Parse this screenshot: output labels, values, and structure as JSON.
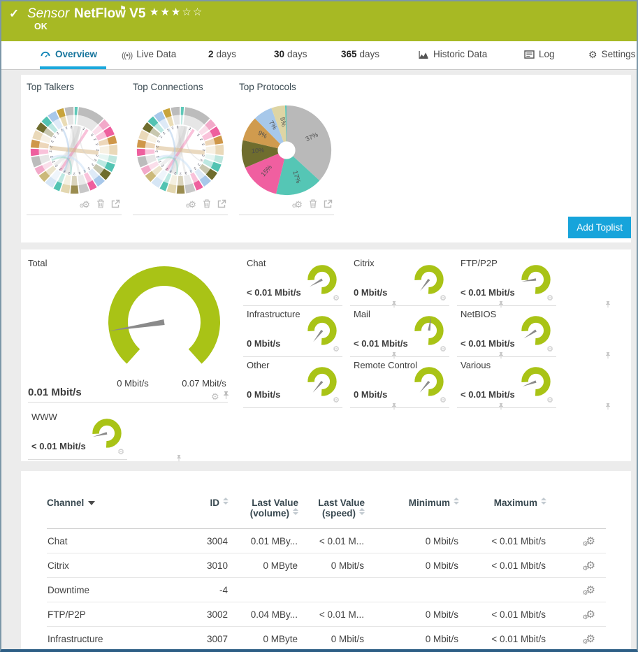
{
  "header": {
    "check_icon": "✓",
    "kind": "Sensor",
    "name": "NetFlow V5",
    "flag_icon": "⚑",
    "stars": "★★★☆☆",
    "status": "OK",
    "bg_color": "#a7b924"
  },
  "tabs": [
    {
      "label": "Overview",
      "icon": "gauge",
      "active": true
    },
    {
      "label": "Live Data",
      "icon": "broadcast"
    },
    {
      "label": "2",
      "suffix": "days"
    },
    {
      "label": "30",
      "suffix": "days"
    },
    {
      "label": "365",
      "suffix": "days"
    },
    {
      "label": "Historic Data",
      "icon": "chart"
    },
    {
      "label": "Log",
      "icon": "log"
    },
    {
      "label": "Settings",
      "icon": "gear"
    }
  ],
  "toplists": {
    "add_button": "Add Toplist",
    "accent_color": "#17a4db",
    "items": [
      {
        "title": "Top Talkers"
      },
      {
        "title": "Top Connections"
      },
      {
        "title": "Top Protocols"
      }
    ]
  },
  "chart_data": [
    {
      "type": "chord",
      "title": "Top Talkers",
      "segments": [
        {
          "color": "#5ec8b8",
          "w": 0.5
        },
        {
          "color": "#bcbcbc",
          "w": 3.4
        },
        {
          "color": "#f2a9c9",
          "w": 1.1
        },
        {
          "color": "#ee5f9e",
          "w": 1.2
        },
        {
          "color": "#cf9749",
          "w": 1.1
        },
        {
          "color": "#ead9b9",
          "w": 1.4
        },
        {
          "color": "#bfe7df",
          "w": 1.0
        },
        {
          "color": "#52c3b2",
          "w": 1.1
        },
        {
          "color": "#6f6d2e",
          "w": 1.2
        },
        {
          "color": "#a8c8ea",
          "w": 1.2
        },
        {
          "color": "#ee5f9e",
          "w": 1.0
        },
        {
          "color": "#c7c7c7",
          "w": 1.3
        },
        {
          "color": "#9a8c4f",
          "w": 1.1
        },
        {
          "color": "#e3d7b0",
          "w": 1.2
        },
        {
          "color": "#52c3b2",
          "w": 0.9
        },
        {
          "color": "#d6e6f5",
          "w": 1.2
        },
        {
          "color": "#cbb97a",
          "w": 1.1
        },
        {
          "color": "#f2a9c9",
          "w": 1.0
        },
        {
          "color": "#bcbcbc",
          "w": 1.4
        },
        {
          "color": "#ee5f9e",
          "w": 1.0
        },
        {
          "color": "#cf9749",
          "w": 1.1
        },
        {
          "color": "#ead9b9",
          "w": 1.2
        },
        {
          "color": "#6f6d2e",
          "w": 1.1
        },
        {
          "color": "#52c3b2",
          "w": 1.0
        },
        {
          "color": "#a8c8ea",
          "w": 1.2
        },
        {
          "color": "#c8a43c",
          "w": 1.0
        },
        {
          "color": "#bcbcbc",
          "w": 1.2
        }
      ],
      "ring_digits": [
        "",
        "1",
        "5",
        "2",
        "2",
        "2",
        "2",
        "2",
        "2",
        "2",
        "2",
        "2",
        "2",
        "2",
        "2",
        "2",
        "2",
        "2",
        "2",
        "2",
        "2",
        "2",
        "2",
        "2",
        "2",
        "2",
        "2"
      ],
      "chords": [
        {
          "a": 8,
          "b": 196,
          "c": "#bbbbbb",
          "w": 9,
          "o": 0.3
        },
        {
          "a": 14,
          "b": 232,
          "c": "#bbbbbb",
          "w": 5,
          "o": 0.25
        },
        {
          "a": 356,
          "b": 168,
          "c": "#bbbbbb",
          "w": 3,
          "o": 0.25
        },
        {
          "a": 2,
          "b": 210,
          "c": "#cccccc",
          "w": 12,
          "o": 0.22
        },
        {
          "a": 33,
          "b": 214,
          "c": "#ee5f9e",
          "w": 4,
          "o": 0.38
        },
        {
          "a": 96,
          "b": 276,
          "c": "#d9b98b",
          "w": 6,
          "o": 0.55
        },
        {
          "a": 152,
          "b": 252,
          "c": "#cfe3f7",
          "w": 3,
          "o": 0.6
        },
        {
          "a": 205,
          "b": 332,
          "c": "#a8c8ea",
          "w": 2.5,
          "o": 0.5
        },
        {
          "a": 22,
          "b": 118,
          "c": "#cccccc",
          "w": 1.5,
          "o": 0.4
        },
        {
          "a": 188,
          "b": 246,
          "c": "#7fd2c4",
          "w": 2.5,
          "o": 0.45
        }
      ]
    },
    {
      "type": "chord",
      "title": "Top Connections",
      "segments": [
        {
          "color": "#5ec8b8",
          "w": 0.5
        },
        {
          "color": "#bcbcbc",
          "w": 3.4
        },
        {
          "color": "#f2a9c9",
          "w": 1.1
        },
        {
          "color": "#ee5f9e",
          "w": 1.2
        },
        {
          "color": "#cf9749",
          "w": 1.1
        },
        {
          "color": "#ead9b9",
          "w": 1.4
        },
        {
          "color": "#bfe7df",
          "w": 1.0
        },
        {
          "color": "#52c3b2",
          "w": 1.1
        },
        {
          "color": "#6f6d2e",
          "w": 1.2
        },
        {
          "color": "#a8c8ea",
          "w": 1.2
        },
        {
          "color": "#ee5f9e",
          "w": 1.0
        },
        {
          "color": "#c7c7c7",
          "w": 1.3
        },
        {
          "color": "#9a8c4f",
          "w": 1.1
        },
        {
          "color": "#e3d7b0",
          "w": 1.2
        },
        {
          "color": "#52c3b2",
          "w": 0.9
        },
        {
          "color": "#d6e6f5",
          "w": 1.2
        },
        {
          "color": "#cbb97a",
          "w": 1.1
        },
        {
          "color": "#f2a9c9",
          "w": 1.0
        },
        {
          "color": "#bcbcbc",
          "w": 1.4
        },
        {
          "color": "#ee5f9e",
          "w": 1.0
        },
        {
          "color": "#cf9749",
          "w": 1.1
        },
        {
          "color": "#ead9b9",
          "w": 1.2
        },
        {
          "color": "#6f6d2e",
          "w": 1.1
        },
        {
          "color": "#52c3b2",
          "w": 1.0
        },
        {
          "color": "#a8c8ea",
          "w": 1.2
        },
        {
          "color": "#c8a43c",
          "w": 1.0
        },
        {
          "color": "#bcbcbc",
          "w": 1.2
        }
      ],
      "ring_digits": [
        "",
        "1",
        "5",
        "2",
        "2",
        "2",
        "2",
        "2",
        "2",
        "2",
        "2",
        "2",
        "2",
        "2",
        "2",
        "2",
        "2",
        "2",
        "2",
        "2",
        "2",
        "2",
        "2",
        "2",
        "2",
        "2",
        "2"
      ],
      "chords": [
        {
          "a": 8,
          "b": 196,
          "c": "#bbbbbb",
          "w": 9,
          "o": 0.3
        },
        {
          "a": 14,
          "b": 232,
          "c": "#bbbbbb",
          "w": 5,
          "o": 0.25
        },
        {
          "a": 356,
          "b": 168,
          "c": "#bbbbbb",
          "w": 3,
          "o": 0.25
        },
        {
          "a": 2,
          "b": 210,
          "c": "#cccccc",
          "w": 12,
          "o": 0.22
        },
        {
          "a": 33,
          "b": 214,
          "c": "#ee5f9e",
          "w": 4,
          "o": 0.38
        },
        {
          "a": 96,
          "b": 276,
          "c": "#d9b98b",
          "w": 6,
          "o": 0.55
        },
        {
          "a": 152,
          "b": 252,
          "c": "#cfe3f7",
          "w": 3,
          "o": 0.6
        },
        {
          "a": 205,
          "b": 332,
          "c": "#a8c8ea",
          "w": 2.5,
          "o": 0.5
        },
        {
          "a": 22,
          "b": 118,
          "c": "#cccccc",
          "w": 1.5,
          "o": 0.4
        },
        {
          "a": 188,
          "b": 246,
          "c": "#7fd2c4",
          "w": 2.5,
          "o": 0.45
        }
      ]
    },
    {
      "type": "pie",
      "title": "Top Protocols",
      "slices": [
        {
          "pct": 37,
          "label": "37%",
          "color": "#b9b9b9"
        },
        {
          "pct": 17,
          "label": "17%",
          "color": "#55c6b5"
        },
        {
          "pct": 15,
          "label": "15%",
          "color": "#f05fa0"
        },
        {
          "pct": 10,
          "label": "10%",
          "color": "#6f6d2e"
        },
        {
          "pct": 9,
          "label": "9%",
          "color": "#d09b4e"
        },
        {
          "pct": 7,
          "label": "7%",
          "color": "#a7c8ea"
        },
        {
          "pct": 5,
          "label": "5%",
          "color": "#ded5a4"
        },
        {
          "pct": 0.5,
          "label": "",
          "color": "#55c6b5"
        }
      ]
    }
  ],
  "gauges": {
    "accent_color": "#a9c316",
    "total": {
      "name": "Total",
      "value": "0.01 Mbit/s",
      "min_label": "0 Mbit/s",
      "max_label": "0.07 Mbit/s",
      "needle_deg": 261
    },
    "channels": [
      {
        "name": "Chat",
        "value": "< 0.01 Mbit/s",
        "needle_deg": 240
      },
      {
        "name": "Citrix",
        "value": "0 Mbit/s",
        "needle_deg": 218
      },
      {
        "name": "FTP/P2P",
        "value": "< 0.01 Mbit/s",
        "needle_deg": 262
      },
      {
        "name": "Infrastructure",
        "value": "0 Mbit/s",
        "needle_deg": 218
      },
      {
        "name": "Mail",
        "value": "< 0.01 Mbit/s",
        "needle_deg": 8
      },
      {
        "name": "NetBIOS",
        "value": "< 0.01 Mbit/s",
        "needle_deg": 237
      },
      {
        "name": "Other",
        "value": "0 Mbit/s",
        "needle_deg": 220
      },
      {
        "name": "Remote Control",
        "value": "0 Mbit/s",
        "needle_deg": 220
      },
      {
        "name": "Various",
        "value": "< 0.01 Mbit/s",
        "needle_deg": 250
      },
      {
        "name": "WWW",
        "value": "< 0.01 Mbit/s",
        "needle_deg": 256
      }
    ]
  },
  "table": {
    "columns": [
      {
        "label": "Channel",
        "sorted": true
      },
      {
        "label": "ID",
        "sortable": true
      },
      {
        "label": "Last Value",
        "sub": "(volume)",
        "sortable": true
      },
      {
        "label": "Last Value",
        "sub": "(speed)",
        "sortable": true
      },
      {
        "label": "Minimum",
        "sortable": true
      },
      {
        "label": "Maximum",
        "sortable": true
      },
      {
        "label": ""
      }
    ],
    "rows": [
      [
        "Chat",
        "3004",
        "0.01 MBy...",
        "< 0.01 M...",
        "0 Mbit/s",
        "< 0.01 Mbit/s"
      ],
      [
        "Citrix",
        "3010",
        "0 MByte",
        "0 Mbit/s",
        "0 Mbit/s",
        "< 0.01 Mbit/s"
      ],
      [
        "Downtime",
        "-4",
        "",
        "",
        "",
        ""
      ],
      [
        "FTP/P2P",
        "3002",
        "0.04 MBy...",
        "< 0.01 M...",
        "0 Mbit/s",
        "< 0.01 Mbit/s"
      ],
      [
        "Infrastructure",
        "3007",
        "0 MByte",
        "0 Mbit/s",
        "0 Mbit/s",
        "< 0.01 Mbit/s"
      ]
    ]
  }
}
